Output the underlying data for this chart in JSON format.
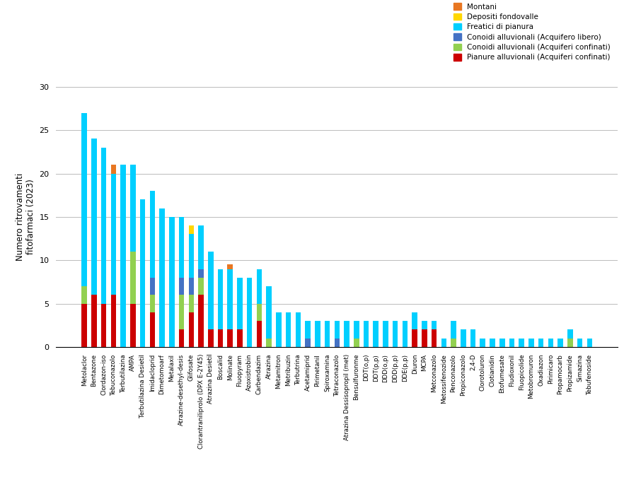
{
  "categories": [
    "Metolaclor",
    "Bentazone",
    "Clordazon-iso",
    "Tebuconazolo",
    "Terbutilazina",
    "AMPA",
    "Terbutilazina Desietil",
    "Imidacloprid",
    "Dimetomoarf",
    "Metalaxil",
    "Atrazine-desethyl-desis",
    "Glifosate",
    "Clorantraniliprolo (DPX E-2Y45)",
    "Atrazina Desietil",
    "Boscalid",
    "Molinate",
    "Fluopyram",
    "Azoxistrobin",
    "Carbendazim",
    "Atrazina",
    "Metamitron",
    "Metribuzin",
    "Terbutrina",
    "Acetamiprid",
    "Pirimetanil",
    "Spiroxamina",
    "Tetraconazolo",
    "Atrazina Dessisopropil (met)",
    "Bensulfuronme",
    "DDT(o,p)",
    "DDT(p,p)",
    "DDD(o,p)",
    "DDD(p,p)",
    "DDE(p,p)",
    "Diuron",
    "MCPA",
    "Metconazolo",
    "Metossifenozide",
    "Penconazolo",
    "Propiconazolo",
    "2,4-D",
    "Clorotoluron",
    "Clotianidin",
    "Etofumesate",
    "Fludioxonil",
    "Fluopicolide",
    "Metobromuron",
    "Oxadiazon",
    "Pirimicaro",
    "Propamocarb",
    "Propizamide",
    "Simazina",
    "Tebufenoside"
  ],
  "montani": [
    0,
    0,
    0,
    1,
    0,
    0,
    0,
    0,
    0,
    0,
    0,
    0,
    0,
    0,
    0,
    0.5,
    0,
    0,
    0,
    0,
    0,
    0,
    0,
    0,
    0,
    0,
    0,
    0,
    0,
    0,
    0,
    0,
    0,
    0,
    0,
    0,
    0,
    0,
    0,
    0,
    0,
    0,
    0,
    0,
    0,
    0,
    0,
    0,
    0,
    0,
    0,
    0,
    0
  ],
  "depositi_fondovalle": [
    0,
    0,
    0,
    0,
    0,
    0,
    0,
    0,
    0,
    0,
    0,
    1,
    0,
    0,
    0,
    0,
    0,
    0,
    0,
    0,
    0,
    0,
    0,
    0,
    0,
    0,
    0,
    0,
    0,
    0,
    0,
    0,
    0,
    0,
    0,
    0,
    0,
    0,
    0,
    0,
    0,
    0,
    0,
    0,
    0,
    0,
    0,
    0,
    0,
    0,
    0,
    0,
    0
  ],
  "freatici_pianura": [
    20,
    18,
    18,
    14,
    21,
    10,
    17,
    10,
    16,
    15,
    7,
    5,
    5,
    9,
    7,
    7,
    6,
    8,
    4,
    6,
    4,
    4,
    4,
    2,
    3,
    3,
    2,
    3,
    2,
    3,
    3,
    3,
    3,
    3,
    2,
    1,
    1,
    1,
    2,
    2,
    2,
    1,
    1,
    1,
    1,
    1,
    1,
    1,
    1,
    1,
    1,
    1,
    1
  ],
  "conoidi_libero": [
    0,
    0,
    0,
    0,
    0,
    0,
    0,
    2,
    0,
    0,
    2,
    2,
    1,
    0,
    0,
    0,
    0,
    0,
    0,
    0,
    0,
    0,
    0,
    1,
    0,
    0,
    1,
    0,
    0,
    0,
    0,
    0,
    0,
    0,
    0,
    0,
    0,
    0,
    0,
    0,
    0,
    0,
    0,
    0,
    0,
    0,
    0,
    0,
    0,
    0,
    0,
    0,
    0
  ],
  "conoidi_confinati": [
    2,
    0,
    0,
    0,
    0,
    6,
    0,
    2,
    0,
    0,
    4,
    2,
    2,
    0,
    0,
    0,
    0,
    0,
    2,
    1,
    0,
    0,
    0,
    0,
    0,
    0,
    0,
    0,
    1,
    0,
    0,
    0,
    0,
    0,
    0,
    0,
    0,
    0,
    1,
    0,
    0,
    0,
    0,
    0,
    0,
    0,
    0,
    0,
    0,
    0,
    1,
    0,
    0
  ],
  "pianure_confinati": [
    5,
    6,
    5,
    6,
    0,
    5,
    0,
    4,
    0,
    0,
    2,
    4,
    6,
    2,
    2,
    2,
    2,
    0,
    3,
    0,
    0,
    0,
    0,
    0,
    0,
    0,
    0,
    0,
    0,
    0,
    0,
    0,
    0,
    0,
    2,
    2,
    2,
    0,
    0,
    0,
    0,
    0,
    0,
    0,
    0,
    0,
    0,
    0,
    0,
    0,
    0,
    0,
    0
  ],
  "colors": {
    "montani": "#E87722",
    "depositi_fondovalle": "#FFD700",
    "freatici_pianura": "#00CFFF",
    "conoidi_libero": "#4472C4",
    "conoidi_confinati": "#92D050",
    "pianure_confinati": "#CC0000"
  },
  "legend_labels": [
    "Montani",
    "Depositi fondovalle",
    "Freatici di pianura",
    "Conoidi alluvionali (Acquifero libero)",
    "Conoidi alluvionali (Acquiferi confinati)",
    "Pianure alluvionali (Acquiferi confinati)"
  ],
  "ylabel": "Numero ritrovamenti\nfitofarmaci (2023)",
  "ylim": [
    0,
    30
  ],
  "yticks": [
    0,
    5,
    10,
    15,
    20,
    25,
    30
  ],
  "background_color": "#FFFFFF",
  "grid_color": "#BBBBBB"
}
